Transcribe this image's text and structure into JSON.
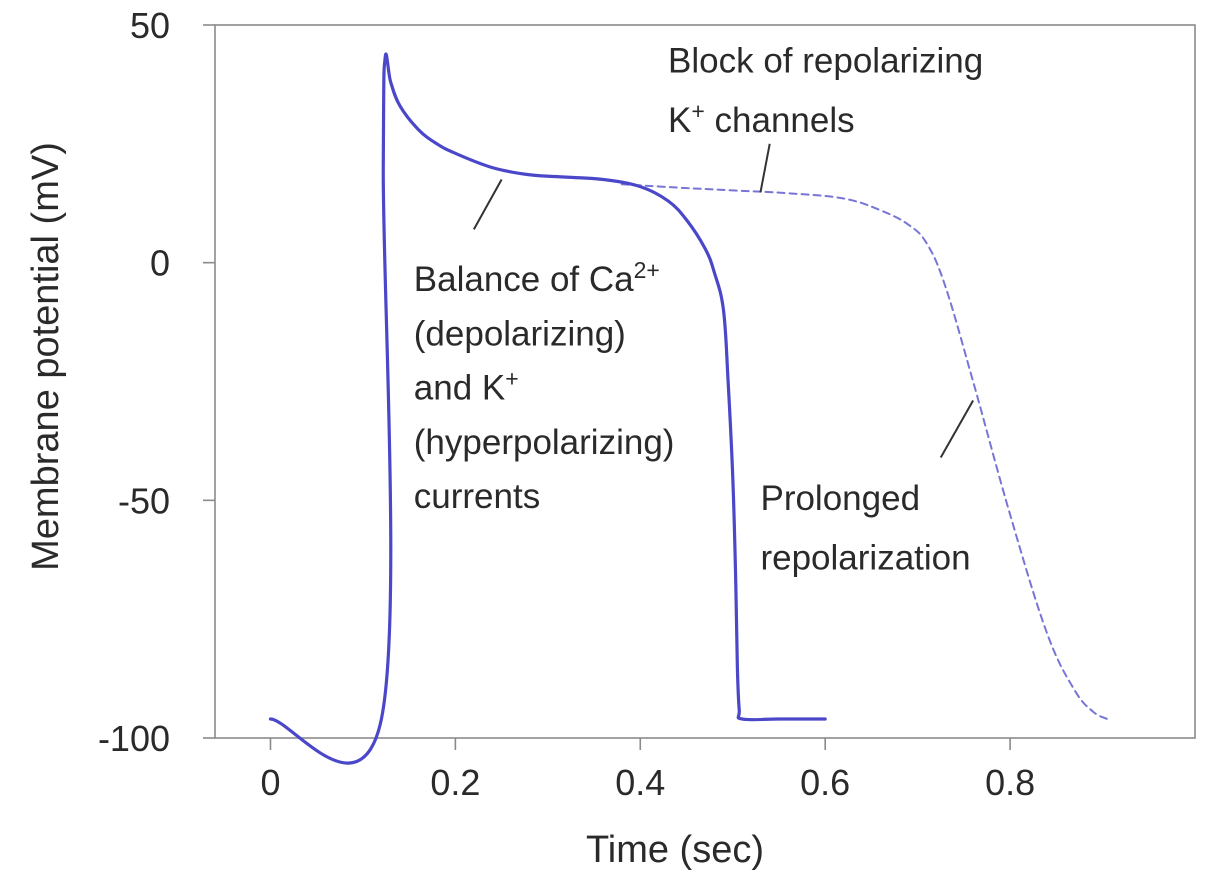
{
  "chart_data": {
    "type": "line",
    "title": "",
    "xlabel": "Time (sec)",
    "ylabel": "Membrane potential (mV)",
    "xlim": [
      -0.06,
      1.0
    ],
    "ylim": [
      -100,
      50
    ],
    "xticks": [
      0,
      0.2,
      0.4,
      0.6,
      0.8
    ],
    "xtick_labels": [
      "0",
      "0.2",
      "0.4",
      "0.6",
      "0.8"
    ],
    "yticks": [
      50,
      0,
      -50,
      -100
    ],
    "ytick_labels": [
      "50",
      "0",
      "-50",
      "-100"
    ],
    "grid": false,
    "legend": "none",
    "colors": {
      "line": "#4a47c8",
      "axis": "#8a8a8a",
      "text": "#2a2a2a"
    },
    "series": [
      {
        "style": "solid",
        "x": [
          0.0,
          0.12,
          0.122,
          0.124,
          0.13,
          0.14,
          0.16,
          0.18,
          0.2,
          0.24,
          0.28,
          0.32,
          0.36,
          0.4,
          0.43,
          0.45,
          0.47,
          0.48,
          0.49,
          0.495,
          0.5,
          0.503,
          0.505,
          0.507,
          0.51,
          0.55,
          0.6
        ],
        "y": [
          -96,
          -96,
          20,
          43,
          38,
          33,
          28,
          25,
          23,
          20,
          18.5,
          18,
          17.5,
          16,
          13,
          9,
          3,
          -2,
          -10,
          -25,
          -45,
          -65,
          -85,
          -94,
          -96,
          -96,
          -96
        ]
      },
      {
        "style": "dashed",
        "x": [
          0.38,
          0.44,
          0.5,
          0.56,
          0.62,
          0.66,
          0.69,
          0.71,
          0.73,
          0.76,
          0.8,
          0.84,
          0.87,
          0.89,
          0.905
        ],
        "y": [
          16.5,
          15.8,
          15.2,
          14.6,
          13.5,
          11,
          8,
          4,
          -5,
          -25,
          -53,
          -78,
          -90,
          -94.5,
          -96
        ]
      }
    ],
    "annotations": [
      {
        "lines": [
          [
            {
              "t": "Block of repolarizing"
            }
          ],
          [
            {
              "t": "K"
            },
            {
              "t": "+",
              "sup": true
            },
            {
              "t": " channels"
            }
          ]
        ],
        "x": 0.43,
        "y": 40,
        "line_height": 12.5,
        "leader_from": [
          0.54,
          25
        ],
        "leader_to": [
          0.53,
          14.8
        ]
      },
      {
        "lines": [
          [
            {
              "t": "Balance of Ca"
            },
            {
              "t": "2+",
              "sup": true
            }
          ],
          [
            {
              "t": "(depolarizing)"
            }
          ],
          [
            {
              "t": "and K"
            },
            {
              "t": "+",
              "sup": true
            }
          ],
          [
            {
              "t": "(hyperpolarizing)"
            }
          ],
          [
            {
              "t": "currents"
            }
          ]
        ],
        "x": 0.155,
        "y": -6,
        "line_height": 11.4,
        "leader_from": [
          0.22,
          7
        ],
        "leader_to": [
          0.25,
          17.5
        ]
      },
      {
        "lines": [
          [
            {
              "t": "Prolonged"
            }
          ],
          [
            {
              "t": "repolarization"
            }
          ]
        ],
        "x": 0.53,
        "y": -52,
        "line_height": 12.6,
        "leader_from": [
          0.725,
          -41
        ],
        "leader_to": [
          0.76,
          -29
        ]
      }
    ]
  }
}
